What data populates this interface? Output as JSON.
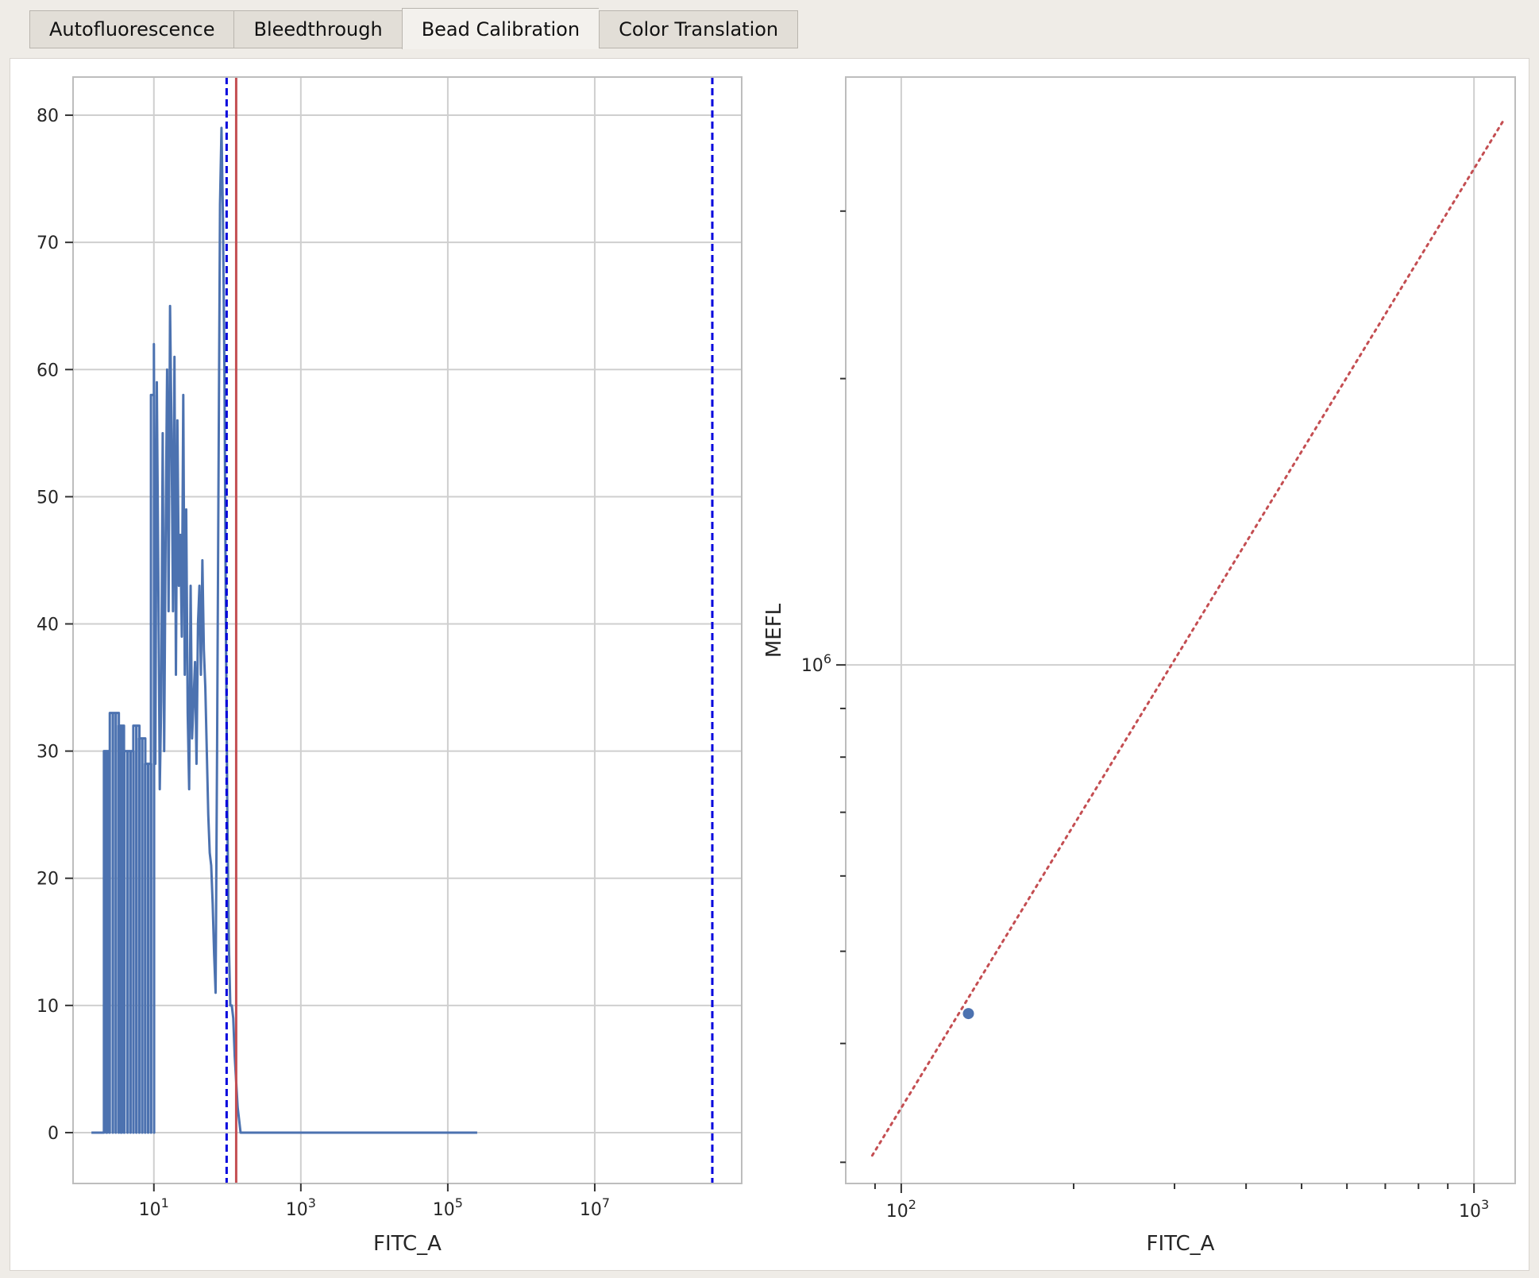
{
  "tabs": [
    {
      "label": "Autofluorescence",
      "active": false
    },
    {
      "label": "Bleedthrough",
      "active": false
    },
    {
      "label": "Bead Calibration",
      "active": true
    },
    {
      "label": "Color Translation",
      "active": false
    }
  ],
  "colors": {
    "histogram": "#4c72b0",
    "peak_line": "#c44e52",
    "range_lines": "#0000dd",
    "grid": "#cfcfcf",
    "fit_line": "#c44e52",
    "point": "#4c72b0"
  },
  "chart_data": [
    {
      "type": "line",
      "name": "bead-histogram",
      "xlabel": "FITC_A",
      "ylabel": "",
      "xscale": "log",
      "xlim_log10": [
        -0.1,
        9.0
      ],
      "ylim": [
        -4,
        83
      ],
      "grid": true,
      "y_ticks": [
        0,
        10,
        20,
        30,
        40,
        50,
        60,
        70,
        80
      ],
      "x_ticks": [
        {
          "base": "10",
          "exp": "1",
          "log10": 1
        },
        {
          "base": "10",
          "exp": "3",
          "log10": 3
        },
        {
          "base": "10",
          "exp": "5",
          "log10": 5
        },
        {
          "base": "10",
          "exp": "7",
          "log10": 7
        }
      ],
      "vlines": [
        {
          "name": "range-min-line",
          "log10": 1.99,
          "style": "dashed"
        },
        {
          "name": "peak-line",
          "log10": 2.12,
          "style": "solid"
        },
        {
          "name": "range-max-line",
          "log10": 8.6,
          "style": "dashed"
        }
      ],
      "series": [
        {
          "name": "FITC_A histogram",
          "x_log10": [
            1.0,
            1.02,
            1.04,
            1.06,
            1.08,
            1.1,
            1.12,
            1.14,
            1.16,
            1.18,
            1.2,
            1.22,
            1.24,
            1.26,
            1.28,
            1.3,
            1.32,
            1.34,
            1.36,
            1.38,
            1.4,
            1.42,
            1.44,
            1.46,
            1.48,
            1.5,
            1.52,
            1.54,
            1.56,
            1.58,
            1.6,
            1.62,
            1.64,
            1.66,
            1.68,
            1.7,
            1.72,
            1.74,
            1.76,
            1.78,
            1.8,
            1.82,
            1.84,
            1.86,
            1.88,
            1.9,
            1.92,
            1.94,
            1.96,
            1.98,
            2.0,
            2.02,
            2.04,
            2.06,
            2.08,
            2.1,
            2.12,
            2.14,
            2.16,
            2.18,
            2.2,
            2.22,
            2.24,
            2.26,
            2.28,
            2.3,
            2.32,
            2.34,
            2.36,
            2.38,
            2.4,
            2.45,
            2.5,
            5.4
          ],
          "y": [
            62,
            29,
            59,
            44,
            27,
            34,
            55,
            30,
            47,
            60,
            41,
            65,
            55,
            41,
            61,
            36,
            56,
            43,
            47,
            39,
            58,
            36,
            49,
            33,
            27,
            43,
            31,
            34,
            37,
            29,
            40,
            43,
            36,
            45,
            38,
            35,
            30,
            25,
            22,
            21,
            18,
            14,
            11,
            30,
            52,
            73,
            79,
            72,
            60,
            40,
            25,
            15,
            10,
            10,
            9,
            6,
            4,
            2,
            1,
            0,
            0,
            0,
            0,
            0,
            0,
            0,
            0,
            0,
            0,
            0,
            0,
            0,
            0,
            0
          ],
          "low_comb_log10": [
            0.32,
            0.35,
            0.4,
            0.44,
            0.48,
            0.52,
            0.55,
            0.6,
            0.64,
            0.68,
            0.72,
            0.76,
            0.8,
            0.84,
            0.88,
            0.92,
            0.96
          ],
          "low_comb_y": [
            30,
            30,
            33,
            33,
            33,
            32,
            32,
            30,
            30,
            30,
            32,
            32,
            31,
            31,
            29,
            29,
            58
          ],
          "start_log10": 0.15
        }
      ]
    },
    {
      "type": "scatter",
      "name": "calibration-fit",
      "xlabel": "FITC_A",
      "ylabel": "MEFL",
      "xscale": "log",
      "yscale": "log",
      "grid": true,
      "x_ticks": [
        {
          "base": "10",
          "exp": "2",
          "log10": 2
        },
        {
          "base": "10",
          "exp": "3",
          "log10": 3
        }
      ],
      "y_ticks": [
        {
          "base": "10",
          "exp": "6",
          "log10": 6
        }
      ],
      "points": [
        {
          "x": 131,
          "y": 430000
        }
      ],
      "fit_line": {
        "x": [
          89,
          1130
        ],
        "y": [
          305000,
          3750000
        ]
      }
    }
  ]
}
